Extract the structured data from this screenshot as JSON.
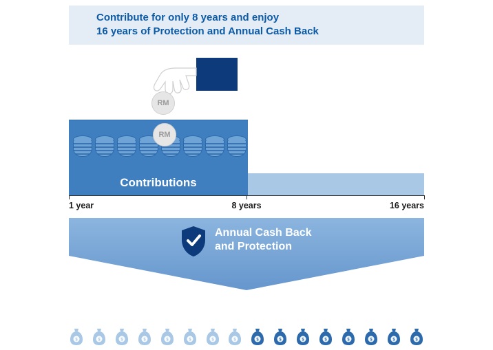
{
  "type": "infographic",
  "colors": {
    "header_bg": "#e4edf5",
    "header_text": "#0d5ba6",
    "cuff": "#0d3a7a",
    "coin_bg": "#e6e6e6",
    "coin_text": "#9a9a9a",
    "contrib_bg": "#3f7fc0",
    "rest_bg": "#a9c8e6",
    "axis": "#333333",
    "arrow_fill": "#6596cd",
    "arrow_fill_light": "#8cb5df",
    "shield": "#0d3a7a",
    "white": "#ffffff",
    "bag_light": "#a9c8e6",
    "bag_dark": "#2d6aac"
  },
  "header": {
    "line1": "Contribute for only 8 years and enjoy",
    "line2": "16 years of Protection and Annual Cash Back"
  },
  "coins": {
    "label": "RM",
    "stacks_in_contrib": 8
  },
  "timeline": {
    "contrib_label": "Contributions",
    "ticks": [
      {
        "pos_pct": 0,
        "label": "1 year",
        "align": "left"
      },
      {
        "pos_pct": 50,
        "label": "8 years",
        "align": "center"
      },
      {
        "pos_pct": 100,
        "label": "16 years",
        "align": "right"
      }
    ],
    "contrib_width_pct": 50
  },
  "band": {
    "line1": "Annual Cash Back",
    "line2": "and Protection"
  },
  "bags": {
    "count": 16,
    "light_until_index": 7
  }
}
